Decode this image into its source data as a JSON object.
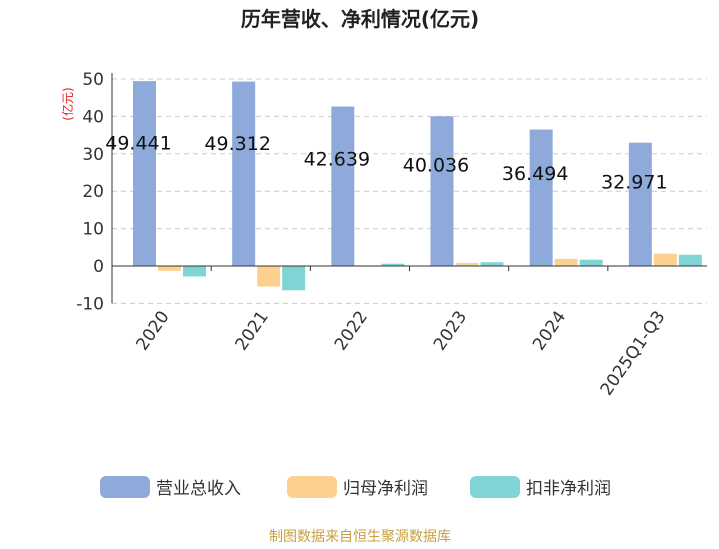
{
  "chart_data": {
    "type": "bar",
    "title": "历年营收、净利情况(亿元)",
    "unit_label": "(亿元)",
    "categories": [
      "2020",
      "2021",
      "2022",
      "2023",
      "2024",
      "2025Q1-Q3"
    ],
    "series": [
      {
        "name": "营业总收入",
        "color": "#8eaadb",
        "values": [
          49.441,
          49.312,
          42.639,
          40.036,
          36.494,
          32.971
        ],
        "labels": [
          "49.441",
          "49.312",
          "42.639",
          "40.036",
          "36.494",
          "32.971"
        ]
      },
      {
        "name": "归母净利润",
        "color": "#fcd18f",
        "values": [
          -1.3,
          -5.5,
          0.15,
          0.8,
          1.9,
          3.3
        ]
      },
      {
        "name": "扣非净利润",
        "color": "#7fd5d5",
        "values": [
          -2.8,
          -6.5,
          0.6,
          1.0,
          1.7,
          3.0
        ]
      }
    ],
    "yticks": [
      "-10",
      "0",
      "10",
      "20",
      "30",
      "40",
      "50"
    ],
    "ylim": [
      -10,
      50
    ],
    "grid": true,
    "legend_position": "bottom"
  },
  "source_text": "制图数据来自恒生聚源数据库"
}
